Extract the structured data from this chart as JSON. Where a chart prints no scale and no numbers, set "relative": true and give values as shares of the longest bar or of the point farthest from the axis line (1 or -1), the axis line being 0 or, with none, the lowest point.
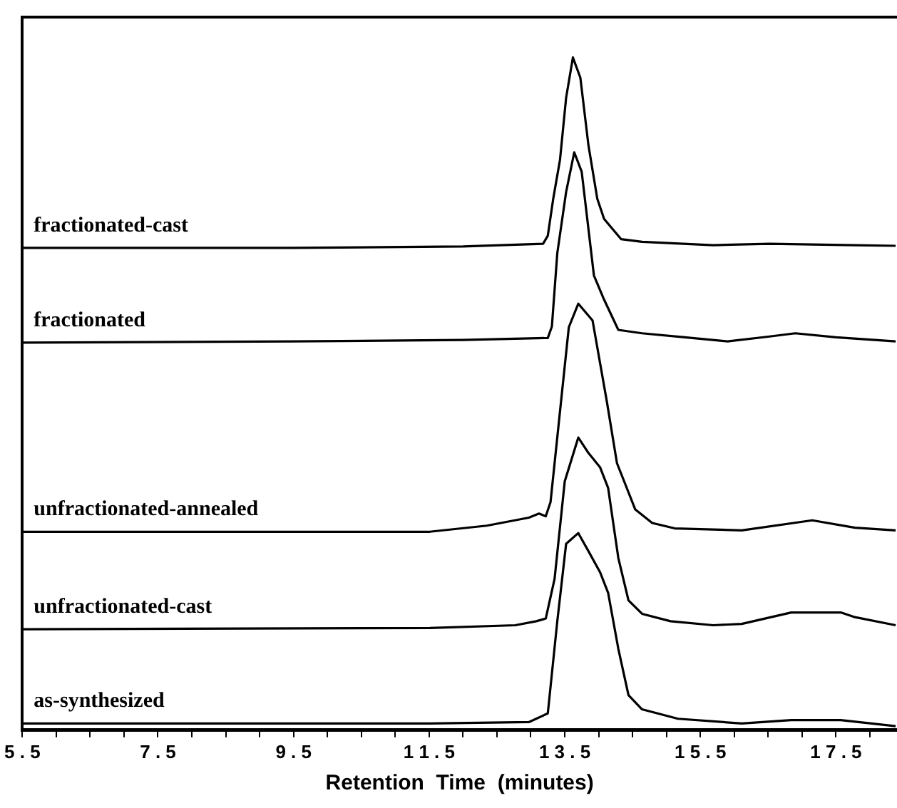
{
  "chart_data": {
    "type": "line",
    "relative": true,
    "xlabel": "Retention Time (minutes)",
    "xlim": [
      5.5,
      18.4
    ],
    "xticks": [
      5.5,
      {
        "value": 6,
        "label": null
      },
      {
        "value": 6.5,
        "label": null
      },
      {
        "value": 7,
        "label": null
      },
      7.5,
      {
        "value": 8,
        "label": null
      },
      {
        "value": 8.5,
        "label": null
      },
      {
        "value": 9,
        "label": null
      },
      9.5,
      {
        "value": 10,
        "label": null
      },
      {
        "value": 10.5,
        "label": null
      },
      {
        "value": 11,
        "label": null
      },
      11.5,
      {
        "value": 12,
        "label": null
      },
      {
        "value": 12.5,
        "label": null
      },
      {
        "value": 13,
        "label": null
      },
      13.5,
      {
        "value": 14,
        "label": null
      },
      {
        "value": 14.5,
        "label": null
      },
      {
        "value": 15,
        "label": null
      },
      15.5,
      {
        "value": 16,
        "label": null
      },
      {
        "value": 16.5,
        "label": null
      },
      {
        "value": 17,
        "label": null
      },
      17.5,
      {
        "value": 18,
        "label": null
      }
    ],
    "grid": false,
    "legend": false,
    "marker": "none",
    "line_style": "solid",
    "series": [
      {
        "name": "fractionated-cast",
        "color": "#000000",
        "x": [
          5.5,
          9.5,
          12.0,
          13.18,
          13.25,
          13.33,
          13.43,
          13.52,
          13.62,
          13.73,
          13.85,
          13.98,
          14.08,
          14.33,
          14.64,
          15.69,
          16.52,
          17.78,
          18.38
        ],
        "values": [
          0.717,
          0.717,
          0.719,
          0.723,
          0.735,
          0.79,
          0.848,
          0.94,
          1.0,
          0.97,
          0.869,
          0.79,
          0.76,
          0.73,
          0.726,
          0.721,
          0.723,
          0.721,
          0.72
        ]
      },
      {
        "name": "fractionated",
        "color": "#000000",
        "x": [
          5.5,
          9.5,
          12.0,
          13.25,
          13.31,
          13.39,
          13.52,
          13.64,
          13.75,
          13.93,
          14.08,
          14.29,
          14.64,
          15.27,
          15.9,
          16.5,
          16.9,
          17.5,
          18.38
        ],
        "values": [
          0.576,
          0.578,
          0.58,
          0.583,
          0.6,
          0.709,
          0.8,
          0.859,
          0.83,
          0.676,
          0.64,
          0.595,
          0.59,
          0.584,
          0.578,
          0.585,
          0.59,
          0.584,
          0.578
        ]
      },
      {
        "name": "unfractionated-annealed",
        "color": "#000000",
        "x": [
          5.5,
          11.51,
          12.35,
          12.97,
          13.12,
          13.22,
          13.29,
          13.43,
          13.56,
          13.7,
          13.91,
          14.12,
          14.27,
          14.54,
          14.79,
          15.12,
          16.11,
          17.15,
          17.78,
          18.38
        ],
        "values": [
          0.295,
          0.295,
          0.304,
          0.316,
          0.322,
          0.318,
          0.339,
          0.474,
          0.599,
          0.634,
          0.609,
          0.489,
          0.397,
          0.328,
          0.308,
          0.3,
          0.297,
          0.312,
          0.301,
          0.297
        ]
      },
      {
        "name": "unfractionated-cast",
        "color": "#000000",
        "x": [
          5.5,
          11.51,
          12.77,
          13.08,
          13.22,
          13.35,
          13.5,
          13.7,
          13.85,
          14.02,
          14.14,
          14.29,
          14.44,
          14.64,
          15.06,
          15.69,
          16.11,
          16.84,
          17.57,
          17.78,
          18.38
        ],
        "values": [
          0.15,
          0.152,
          0.156,
          0.162,
          0.166,
          0.225,
          0.37,
          0.435,
          0.412,
          0.391,
          0.36,
          0.256,
          0.193,
          0.173,
          0.162,
          0.156,
          0.158,
          0.175,
          0.175,
          0.168,
          0.156
        ]
      },
      {
        "name": "as-synthesized",
        "color": "#000000",
        "x": [
          5.5,
          11.51,
          12.97,
          13.25,
          13.39,
          13.52,
          13.7,
          13.85,
          14.02,
          14.14,
          14.29,
          14.44,
          14.64,
          15.17,
          16.11,
          16.84,
          17.57,
          18.38
        ],
        "values": [
          0.01,
          0.01,
          0.012,
          0.025,
          0.162,
          0.277,
          0.293,
          0.266,
          0.235,
          0.204,
          0.121,
          0.052,
          0.031,
          0.017,
          0.01,
          0.015,
          0.015,
          0.006
        ]
      }
    ]
  }
}
